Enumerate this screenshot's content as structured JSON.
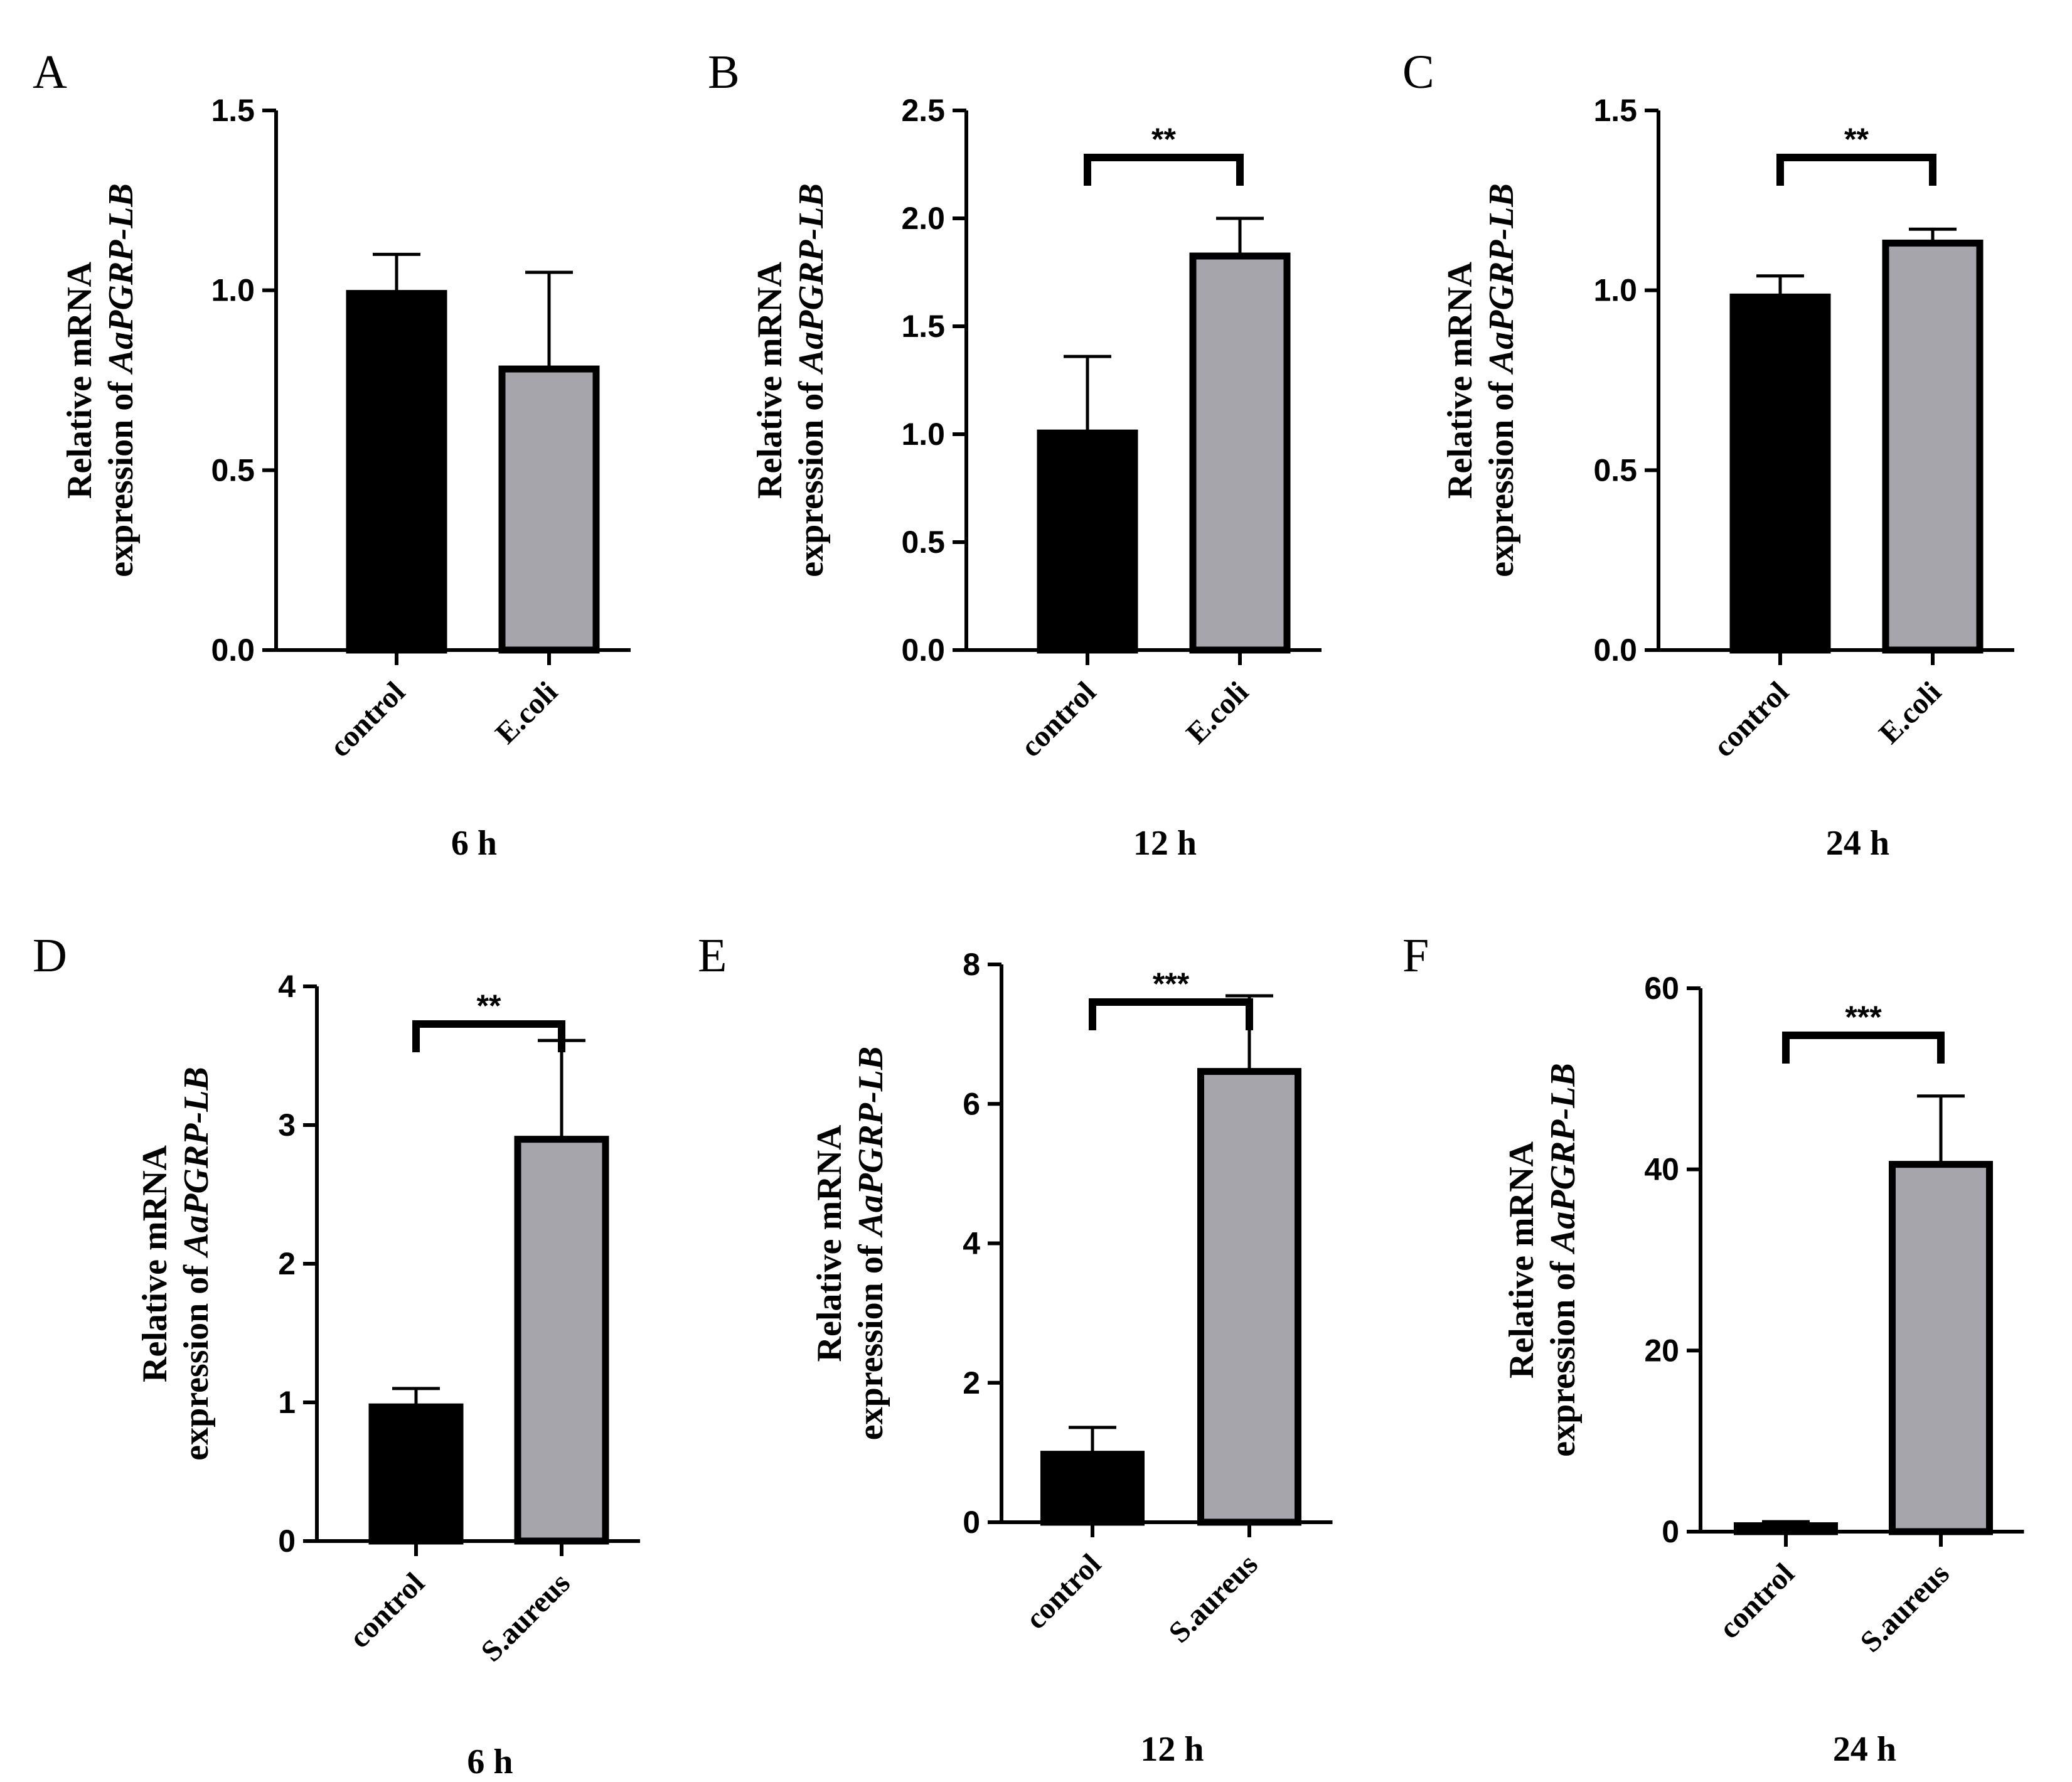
{
  "figure": {
    "ylabel_line1": "Relative mRNA",
    "ylabel_line2_prefix": "expression of ",
    "ylabel_gene": "AaPGRP-LB"
  },
  "colors": {
    "control": "#000000",
    "treatment": "#a5a5ab",
    "stroke": "#000000"
  },
  "chart_data": [
    {
      "type": "bar",
      "panel": "A",
      "time": "6 h",
      "categories": [
        "control",
        "E.coli"
      ],
      "values": [
        1.0,
        0.79
      ],
      "errors": [
        0.1,
        0.26
      ],
      "ylim": [
        0,
        1.5
      ],
      "yticks": [
        "0.0",
        "0.5",
        "1.0",
        "1.5"
      ],
      "ytick_values": [
        0,
        0.5,
        1.0,
        1.5
      ],
      "ylabel": "Relative mRNA expression of AaPGRP-LB",
      "significance": ""
    },
    {
      "type": "bar",
      "panel": "B",
      "time": "12 h",
      "categories": [
        "control",
        "E.coli"
      ],
      "values": [
        1.02,
        1.84
      ],
      "errors": [
        0.34,
        0.16
      ],
      "ylim": [
        0,
        2.5
      ],
      "yticks": [
        "0.0",
        "0.5",
        "1.0",
        "1.5",
        "2.0",
        "2.5"
      ],
      "ytick_values": [
        0,
        0.5,
        1.0,
        1.5,
        2.0,
        2.5
      ],
      "ylabel": "Relative mRNA expression of AaPGRP-LB",
      "significance": "**"
    },
    {
      "type": "bar",
      "panel": "C",
      "time": "24 h",
      "categories": [
        "control",
        "E.coli"
      ],
      "values": [
        0.99,
        1.14
      ],
      "errors": [
        0.05,
        0.03
      ],
      "ylim": [
        0,
        1.5
      ],
      "yticks": [
        "0.0",
        "0.5",
        "1.0",
        "1.5"
      ],
      "ytick_values": [
        0,
        0.5,
        1.0,
        1.5
      ],
      "ylabel": "Relative mRNA expression of AaPGRP-LB",
      "significance": "**"
    },
    {
      "type": "bar",
      "panel": "D",
      "time": "6 h",
      "categories": [
        "control",
        "S.aureus"
      ],
      "values": [
        0.99,
        2.92
      ],
      "errors": [
        0.11,
        0.69
      ],
      "ylim": [
        0,
        4
      ],
      "yticks": [
        "0",
        "1",
        "2",
        "3",
        "4"
      ],
      "ytick_values": [
        0,
        1,
        2,
        3,
        4
      ],
      "ylabel": "Relative mRNA expression of AaPGRP-LB",
      "significance": "**"
    },
    {
      "type": "bar",
      "panel": "E",
      "time": "12 h",
      "categories": [
        "control",
        "S.aureus"
      ],
      "values": [
        1.02,
        6.51
      ],
      "errors": [
        0.34,
        1.04
      ],
      "ylim": [
        0,
        8
      ],
      "yticks": [
        "0",
        "2",
        "4",
        "6",
        "8"
      ],
      "ytick_values": [
        0,
        2,
        4,
        6,
        8
      ],
      "ylabel": "Relative mRNA expression of AaPGRP-LB",
      "significance": "***"
    },
    {
      "type": "bar",
      "panel": "F",
      "time": "24 h",
      "categories": [
        "control",
        "S.aureus"
      ],
      "values": [
        1.0,
        40.9
      ],
      "errors": [
        0.1,
        7.2
      ],
      "ylim": [
        0,
        60
      ],
      "yticks": [
        "0",
        "20",
        "40",
        "60"
      ],
      "ytick_values": [
        0,
        20,
        40,
        60
      ],
      "ylabel": "Relative mRNA expression of AaPGRP-LB",
      "significance": "***"
    }
  ]
}
